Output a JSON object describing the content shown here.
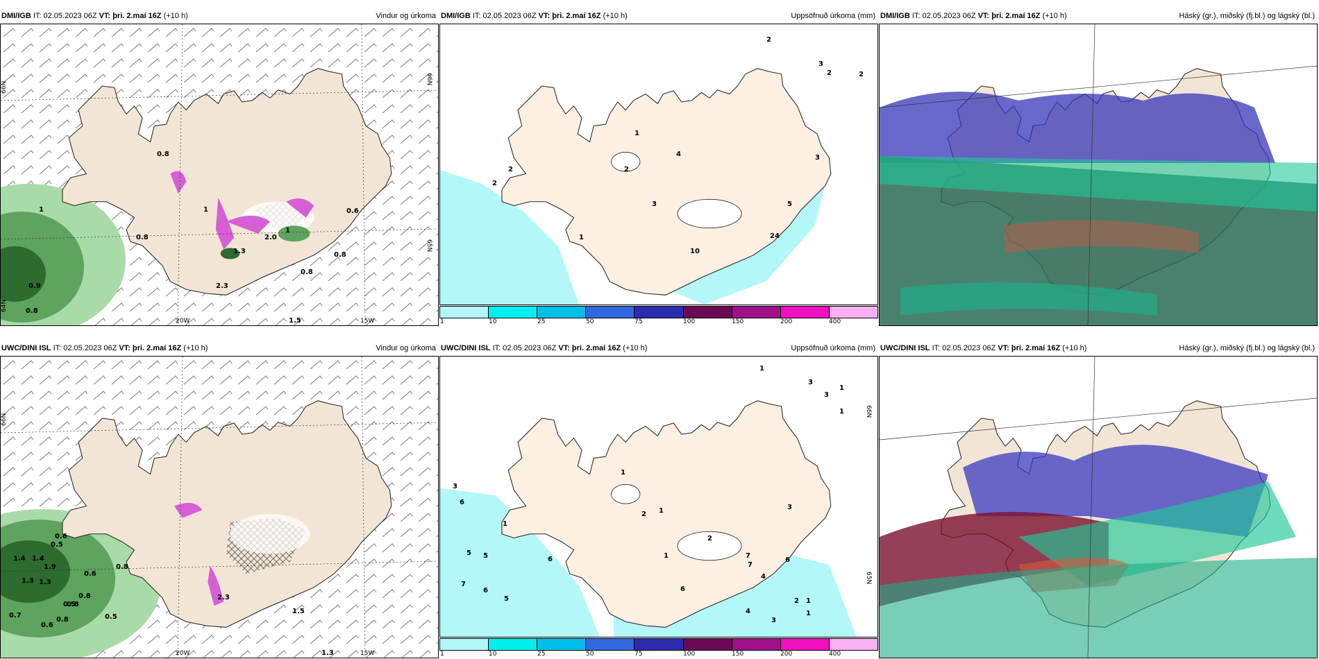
{
  "panels": [
    {
      "model": "DMI/IGB",
      "it": "IT: 02.05.2023 06Z",
      "vt_label": "VT:",
      "vt_value": "þri. 2.maí 16Z",
      "lead": "(+10 h)",
      "title": "Vindur og úrkoma"
    },
    {
      "model": "DMI/IGB",
      "it": "IT: 02.05.2023 06Z",
      "vt_label": "VT:",
      "vt_value": "þri. 2.maí 16Z",
      "lead": "(+10 h)",
      "title": "Uppsöfnuð úrkoma (mm)"
    },
    {
      "model": "DMI/IGB",
      "it": "IT: 02.05.2023 06Z",
      "vt_label": "VT:",
      "vt_value": "þri. 2.maí 16Z",
      "lead": "(+10 h)",
      "title": "Háský (gr.), miðský (fj.bl.) og lágský (bl.)"
    },
    {
      "model": "UWC/DINI ISL",
      "it": "IT: 02.05.2023 06Z",
      "vt_label": "VT:",
      "vt_value": "þri. 2.maí 16Z",
      "lead": "(+10 h)",
      "title": "Vindur og úrkoma"
    },
    {
      "model": "UWC/DINI ISL",
      "it": "IT: 02.05.2023 06Z",
      "vt_label": "VT:",
      "vt_value": "þri. 2.maí 16Z",
      "lead": "(+10 h)",
      "title": "Uppsöfnuð úrkoma (mm)"
    },
    {
      "model": "UWC/DINI ISL",
      "it": "IT: 02.05.2023 06Z",
      "vt_label": "VT:",
      "vt_value": "þri. 2.maí 16Z",
      "lead": "(+10 h)",
      "title": "Háský (gr.), miðský (fj.bl.) og lágský (bl.)"
    }
  ],
  "axes": {
    "lat66": "66N",
    "lat65": "65N",
    "lat64": "64N",
    "lon20": "20W",
    "lon15": "15W"
  },
  "colorbar": {
    "ticks": [
      "1",
      "10",
      "25",
      "50",
      "75",
      "100",
      "150",
      "200",
      "400"
    ],
    "colors": [
      "#b3f7f9",
      "#00f0f0",
      "#00bfe8",
      "#3068e0",
      "#2b2bb0",
      "#6a0a55",
      "#a0108a",
      "#f010c0",
      "#f7b0f0"
    ]
  },
  "labels": {
    "top_wind": [
      "0.8",
      "0.8",
      "0.9",
      "0.8",
      "0.8",
      "1",
      "1",
      "1",
      "2.0",
      "1.3",
      "2.3",
      "0.8",
      "0.6",
      "1.5"
    ],
    "top_precip": [
      "1",
      "2",
      "2",
      "2",
      "4",
      "3",
      "1",
      "10",
      "3",
      "5",
      "24",
      "2",
      "2",
      "2",
      "3"
    ],
    "bot_wind": [
      "0.6",
      "0.5",
      "1.4",
      "1.4",
      "1.9",
      "1.3",
      "1.3",
      "0.6",
      "0.8",
      "0.8",
      "0.5",
      "0.8",
      "0.5",
      "0.7",
      "0.6",
      "0.8",
      "2.3",
      "1.5",
      "1.3"
    ],
    "bot_precip": [
      "1",
      "3",
      "3",
      "1",
      "1",
      "3",
      "6",
      "1",
      "5",
      "5",
      "7",
      "6",
      "5",
      "6",
      "1",
      "2",
      "1",
      "2",
      "6",
      "7",
      "7",
      "4",
      "6",
      "4",
      "3",
      "2",
      "1",
      "1",
      "3",
      "1"
    ]
  },
  "colors": {
    "land": "#f3e5d5",
    "ocean": "#ffffff",
    "green_dark": "#2e6b2e",
    "green_mid": "#5ea35e",
    "green_light": "#a9dba9",
    "magenta": "#d65fd6",
    "cyan": "#b3f7f9"
  }
}
